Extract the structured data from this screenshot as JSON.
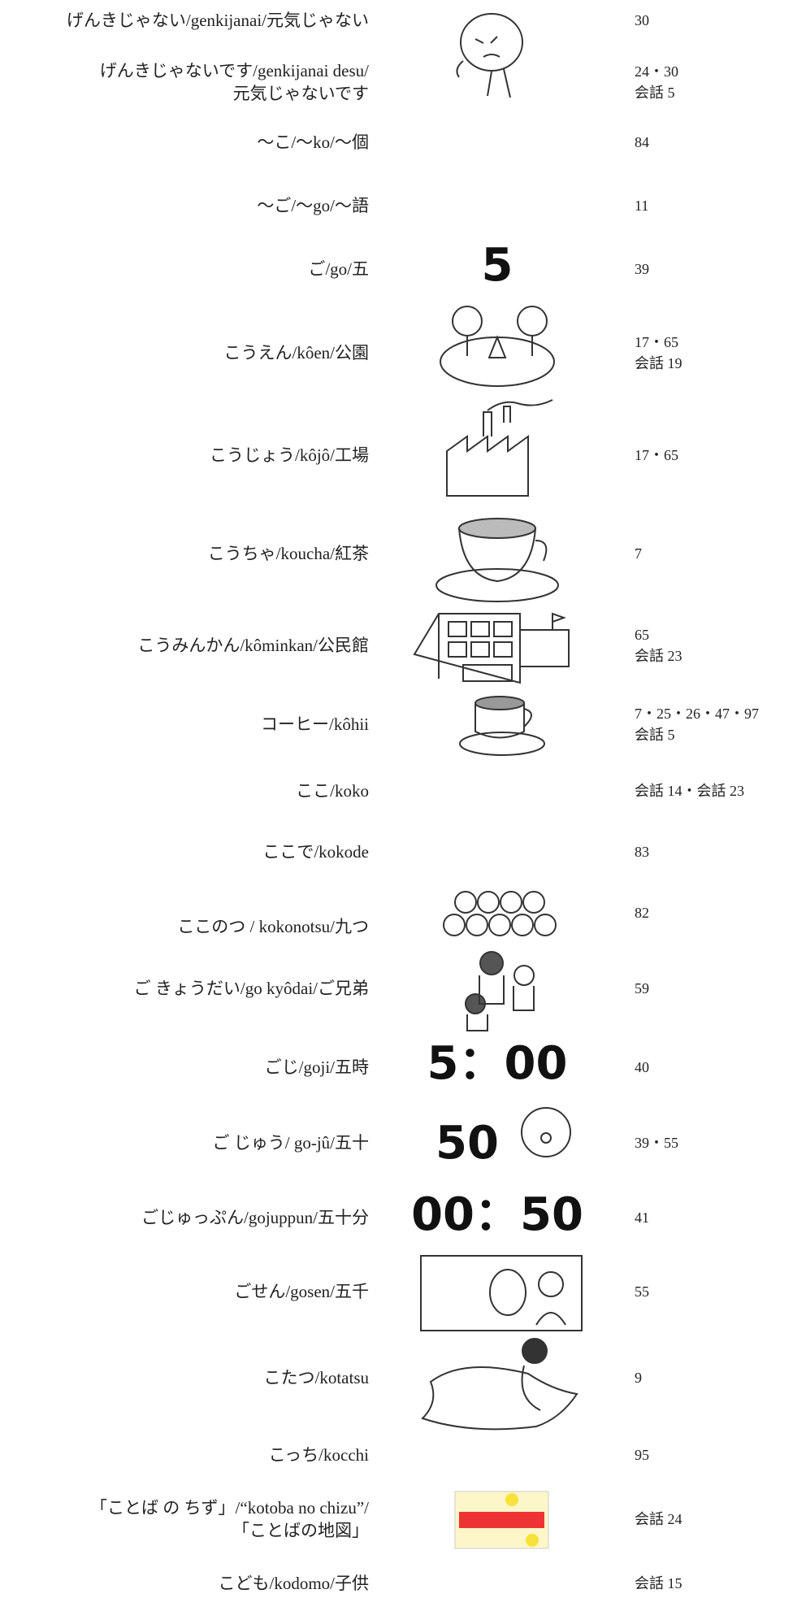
{
  "rows": [
    {
      "term": [
        "げんきじゃない/genkijanai/元気じゃない"
      ],
      "refs": [
        "30"
      ]
    },
    {
      "term": [
        "げんきじゃないです/genkijanai desu/",
        "元気じゃないです"
      ],
      "refs": [
        "24・30",
        "会話 5"
      ]
    },
    {
      "term": [
        "～こ/～ko/～個"
      ],
      "refs": [
        "84"
      ]
    },
    {
      "term": [
        "～ご/～go/～語"
      ],
      "refs": [
        "11"
      ]
    },
    {
      "term": [
        "ご/go/五"
      ],
      "refs": [
        "39"
      ],
      "illustration_text": "5"
    },
    {
      "term": [
        "こうえん/kôen/公園"
      ],
      "refs": [
        "17・65",
        "会話 19"
      ]
    },
    {
      "term": [
        "こうじょう/kôjô/工場"
      ],
      "refs": [
        "17・65"
      ]
    },
    {
      "term": [
        "こうちゃ/koucha/紅茶"
      ],
      "refs": [
        "7"
      ]
    },
    {
      "term": [
        "こうみんかん/kôminkan/公民館"
      ],
      "refs": [
        "65",
        "会話 23"
      ]
    },
    {
      "term": [
        "コーヒー/kôhii"
      ],
      "refs": [
        "7・25・26・47・97",
        "会話 5"
      ]
    },
    {
      "term": [
        "ここ/koko"
      ],
      "refs": [
        "会話 14・会話 23"
      ]
    },
    {
      "term": [
        "ここで/kokode"
      ],
      "refs": [
        "83"
      ]
    },
    {
      "term": [
        "ここのつ / kokonotsu/九つ"
      ],
      "refs": [
        "82"
      ]
    },
    {
      "term": [
        "ご きょうだい/go kyôdai/ご兄弟"
      ],
      "refs": [
        "59"
      ]
    },
    {
      "term": [
        "ごじ/goji/五時"
      ],
      "refs": [
        "40"
      ],
      "illustration_text": "5：00"
    },
    {
      "term": [
        "ご じゅう/ go-jû/五十"
      ],
      "refs": [
        "39・55"
      ],
      "illustration_text": "50"
    },
    {
      "term": [
        "ごじゅっぷん/gojuppun/五十分"
      ],
      "refs": [
        "41"
      ],
      "illustration_text": "00：50"
    },
    {
      "term": [
        "ごせん/gosen/五千"
      ],
      "refs": [
        "55"
      ]
    },
    {
      "term": [
        "こたつ/kotatsu"
      ],
      "refs": [
        "9"
      ]
    },
    {
      "term": [
        "こっち/kocchi"
      ],
      "refs": [
        "95"
      ]
    },
    {
      "term": [
        "「ことば の ちず」/“kotoba no chizu”/",
        "「ことばの地図」"
      ],
      "refs": [
        "会話 24"
      ]
    },
    {
      "term": [
        "こども/kodomo/子供"
      ],
      "refs": [
        "会話 15"
      ]
    }
  ]
}
